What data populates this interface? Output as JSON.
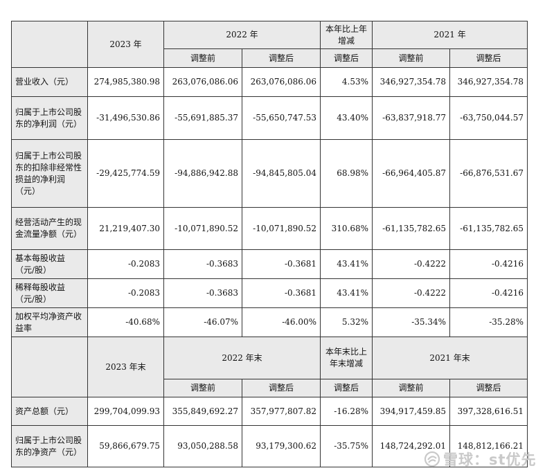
{
  "header1": {
    "y2023": "2023 年",
    "y2022": "2022 年",
    "change": "本年比上年增减",
    "y2021": "2021 年",
    "before": "调整前",
    "after": "调整后"
  },
  "rows1": [
    {
      "label": "营业收入（元）",
      "v2023": "274,985,380.98",
      "v2022b": "263,076,086.06",
      "v2022a": "263,076,086.06",
      "chg": "4.53%",
      "v2021b": "346,927,354.78",
      "v2021a": "346,927,354.78"
    },
    {
      "label": "归属于上市公司股东的净利润（元）",
      "v2023": "-31,496,530.86",
      "v2022b": "-55,691,885.37",
      "v2022a": "-55,650,747.53",
      "chg": "43.40%",
      "v2021b": "-63,837,918.77",
      "v2021a": "-63,750,044.57"
    },
    {
      "label": "归属于上市公司股东的扣除非经常性损益的净利润（元）",
      "v2023": "-29,425,774.59",
      "v2022b": "-94,886,942.88",
      "v2022a": "-94,845,805.04",
      "chg": "68.98%",
      "v2021b": "-66,964,405.87",
      "v2021a": "-66,876,531.67"
    },
    {
      "label": "经营活动产生的现金流量净额（元）",
      "v2023": "21,219,407.30",
      "v2022b": "-10,071,890.52",
      "v2022a": "-10,071,890.52",
      "chg": "310.68%",
      "v2021b": "-61,135,782.65",
      "v2021a": "-61,135,782.65"
    },
    {
      "label": "基本每股收益（元/股）",
      "v2023": "-0.2083",
      "v2022b": "-0.3683",
      "v2022a": "-0.3681",
      "chg": "43.41%",
      "v2021b": "-0.4222",
      "v2021a": "-0.4216"
    },
    {
      "label": "稀释每股收益（元/股）",
      "v2023": "-0.2083",
      "v2022b": "-0.3683",
      "v2022a": "-0.3681",
      "chg": "43.41%",
      "v2021b": "-0.4222",
      "v2021a": "-0.4216"
    },
    {
      "label": "加权平均净资产收益率",
      "v2023": "-40.68%",
      "v2022b": "-46.07%",
      "v2022a": "-46.00%",
      "chg": "5.32%",
      "v2021b": "-35.34%",
      "v2021a": "-35.28%"
    }
  ],
  "header2": {
    "y2023": "2023 年末",
    "y2022": "2022 年末",
    "change": "本年末比上年末增减",
    "y2021": "2021 年末",
    "before": "调整前",
    "after": "调整后"
  },
  "rows2": [
    {
      "label": "资产总额（元）",
      "v2023": "299,704,099.93",
      "v2022b": "355,849,692.27",
      "v2022a": "357,977,807.82",
      "chg": "-16.28%",
      "v2021b": "394,917,459.85",
      "v2021a": "397,328,616.51"
    },
    {
      "label": "归属于上市公司股东的净资产（元）",
      "v2023": "59,866,679.75",
      "v2022b": "93,050,288.58",
      "v2022a": "93,179,300.62",
      "chg": "-35.75%",
      "v2021b": "148,724,292.01",
      "v2021a": "148,812,166.21"
    }
  ],
  "watermark": {
    "text": "雪球：st优先",
    "icon": "snowball-logo-icon"
  }
}
